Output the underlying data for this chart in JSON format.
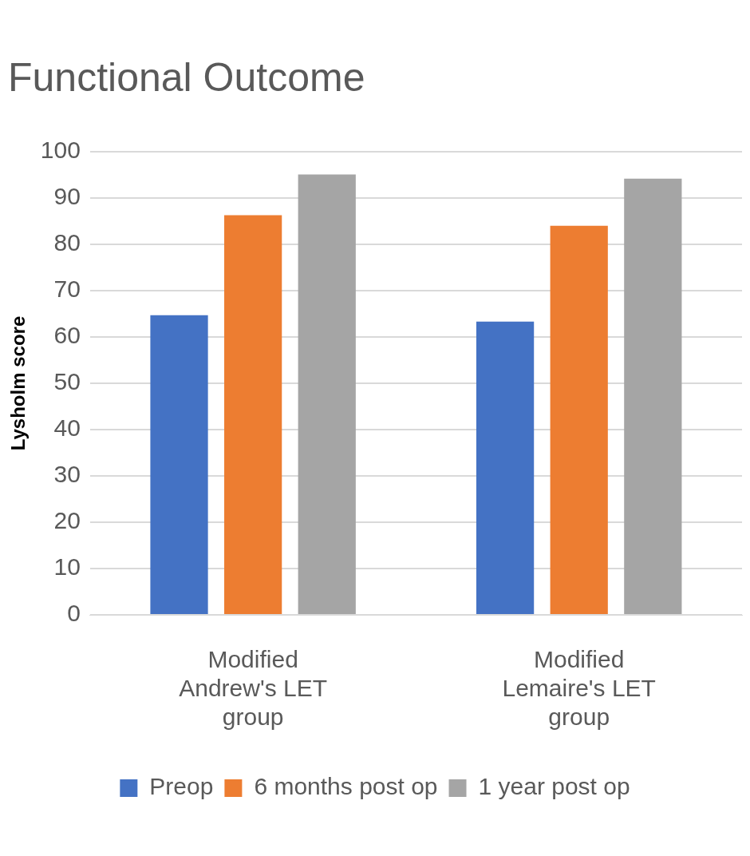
{
  "chart_data": {
    "type": "bar",
    "title": "Functional Outcome",
    "ylabel": "Lysholm score",
    "categories": [
      "Modified Andrew's LET group",
      "Modified Lemaire's LET group"
    ],
    "series": [
      {
        "name": "Preop",
        "color": "#4472c4",
        "values": [
          64.7,
          63.3
        ]
      },
      {
        "name": "6 months post op",
        "color": "#ed7d31",
        "values": [
          86.3,
          84
        ]
      },
      {
        "name": "1 year post op",
        "color": "#a5a5a5",
        "values": [
          95.1,
          94.2
        ]
      }
    ],
    "ylim": [
      0,
      100
    ],
    "yticks": [
      0,
      10,
      20,
      30,
      40,
      50,
      60,
      70,
      80,
      90,
      100
    ],
    "grid": "y",
    "legend": "bottom"
  }
}
